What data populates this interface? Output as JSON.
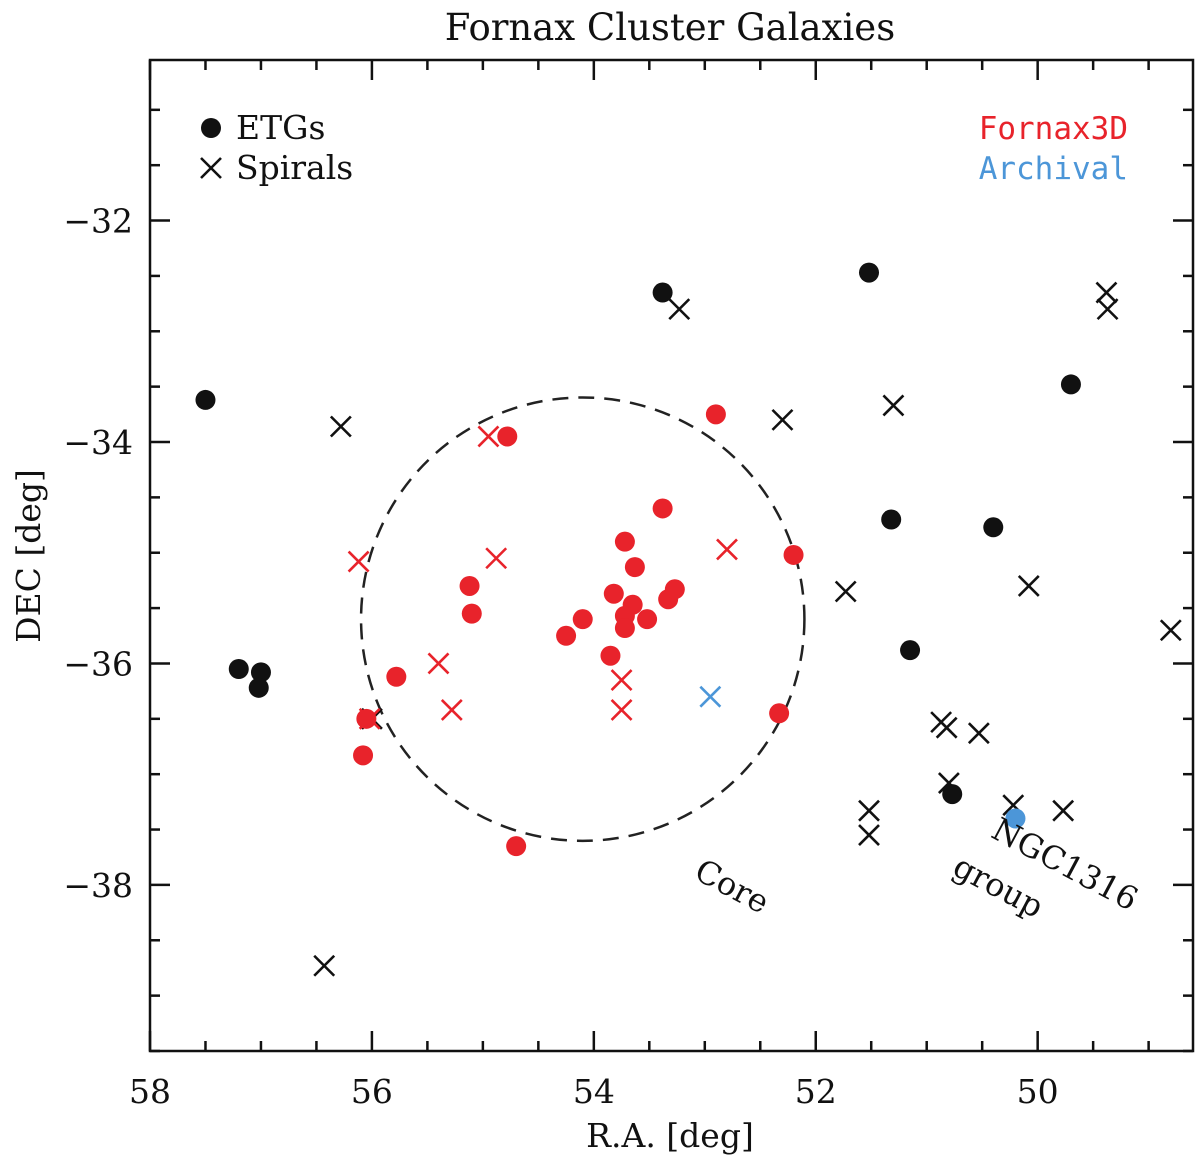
{
  "chart_data": {
    "type": "scatter",
    "title": "Fornax Cluster Galaxies",
    "xlabel": "R.A. [deg]",
    "ylabel": "DEC [deg]",
    "xlim": [
      58,
      48.6
    ],
    "ylim": [
      -39.5,
      -30.55
    ],
    "xticks": [
      58,
      56,
      54,
      52,
      50
    ],
    "yticks": [
      -32,
      -34,
      -36,
      -38
    ],
    "xtick_labels": [
      "58",
      "56",
      "54",
      "52",
      "50"
    ],
    "ytick_labels": [
      "−32",
      "−34",
      "−36",
      "−38"
    ],
    "legend_markers": [
      {
        "label": "ETGs",
        "marker": "circle"
      },
      {
        "label": "Spirals",
        "marker": "x"
      }
    ],
    "legend_colors": [
      {
        "label": "Fornax3D",
        "color": "#e8232b"
      },
      {
        "label": "Archival",
        "color": "#4c96d8"
      }
    ],
    "annotations": [
      {
        "text": "Core",
        "x": 52.8,
        "y": -38.1,
        "rotation": 28
      },
      {
        "text": "NGC1316",
        "x": 49.8,
        "y": -37.9,
        "rotation": 28
      },
      {
        "text": "group",
        "x": 50.4,
        "y": -38.1,
        "rotation": 28
      }
    ],
    "core_circle": {
      "center_x": 54.1,
      "center_y": -35.6,
      "radius_deg": 2.0
    },
    "series": [
      {
        "name": "ETGs (other)",
        "marker": "circle",
        "color": "#111111",
        "points": [
          [
            57.5,
            -33.62
          ],
          [
            57.2,
            -36.05
          ],
          [
            57.0,
            -36.08
          ],
          [
            57.02,
            -36.22
          ],
          [
            53.38,
            -32.65
          ],
          [
            51.52,
            -32.47
          ],
          [
            51.32,
            -34.7
          ],
          [
            51.15,
            -35.88
          ],
          [
            50.4,
            -34.77
          ],
          [
            49.7,
            -33.48
          ],
          [
            50.77,
            -37.18
          ]
        ]
      },
      {
        "name": "Spirals (other)",
        "marker": "x",
        "color": "#111111",
        "points": [
          [
            56.28,
            -33.86
          ],
          [
            56.43,
            -38.73
          ],
          [
            53.23,
            -32.8
          ],
          [
            52.3,
            -33.8
          ],
          [
            51.3,
            -33.67
          ],
          [
            51.73,
            -35.35
          ],
          [
            51.52,
            -37.33
          ],
          [
            51.52,
            -37.55
          ],
          [
            50.87,
            -36.53
          ],
          [
            50.82,
            -36.58
          ],
          [
            50.8,
            -37.08
          ],
          [
            50.53,
            -36.63
          ],
          [
            50.22,
            -37.28
          ],
          [
            50.08,
            -35.3
          ],
          [
            49.77,
            -37.33
          ],
          [
            49.38,
            -32.65
          ],
          [
            49.37,
            -32.8
          ],
          [
            48.8,
            -35.7
          ],
          [
            56.0,
            -36.5
          ]
        ]
      },
      {
        "name": "ETGs (Fornax3D)",
        "marker": "circle",
        "color": "#e8232b",
        "points": [
          [
            54.78,
            -33.95
          ],
          [
            52.9,
            -33.75
          ],
          [
            53.38,
            -34.6
          ],
          [
            53.72,
            -34.9
          ],
          [
            53.63,
            -35.13
          ],
          [
            53.82,
            -35.37
          ],
          [
            53.65,
            -35.47
          ],
          [
            53.72,
            -35.57
          ],
          [
            53.72,
            -35.68
          ],
          [
            53.52,
            -35.6
          ],
          [
            53.33,
            -35.42
          ],
          [
            53.27,
            -35.33
          ],
          [
            54.25,
            -35.75
          ],
          [
            54.1,
            -35.6
          ],
          [
            53.85,
            -35.93
          ],
          [
            55.12,
            -35.3
          ],
          [
            55.1,
            -35.55
          ],
          [
            55.78,
            -36.12
          ],
          [
            56.05,
            -36.5
          ],
          [
            56.08,
            -36.83
          ],
          [
            54.7,
            -37.65
          ],
          [
            52.33,
            -36.45
          ],
          [
            52.2,
            -35.02
          ]
        ]
      },
      {
        "name": "Spirals (Fornax3D)",
        "marker": "x",
        "color": "#e8232b",
        "points": [
          [
            54.95,
            -33.95
          ],
          [
            54.88,
            -35.05
          ],
          [
            52.8,
            -34.97
          ],
          [
            56.12,
            -35.08
          ],
          [
            55.4,
            -36.0
          ],
          [
            55.28,
            -36.42
          ],
          [
            53.75,
            -36.15
          ],
          [
            53.75,
            -36.42
          ],
          [
            56.02,
            -36.5
          ]
        ]
      },
      {
        "name": "ETGs (Archival)",
        "marker": "circle",
        "color": "#4c96d8",
        "points": [
          [
            50.2,
            -37.4
          ]
        ]
      },
      {
        "name": "Spirals (Archival)",
        "marker": "x",
        "color": "#4c96d8",
        "points": [
          [
            52.95,
            -36.3
          ]
        ]
      }
    ]
  }
}
